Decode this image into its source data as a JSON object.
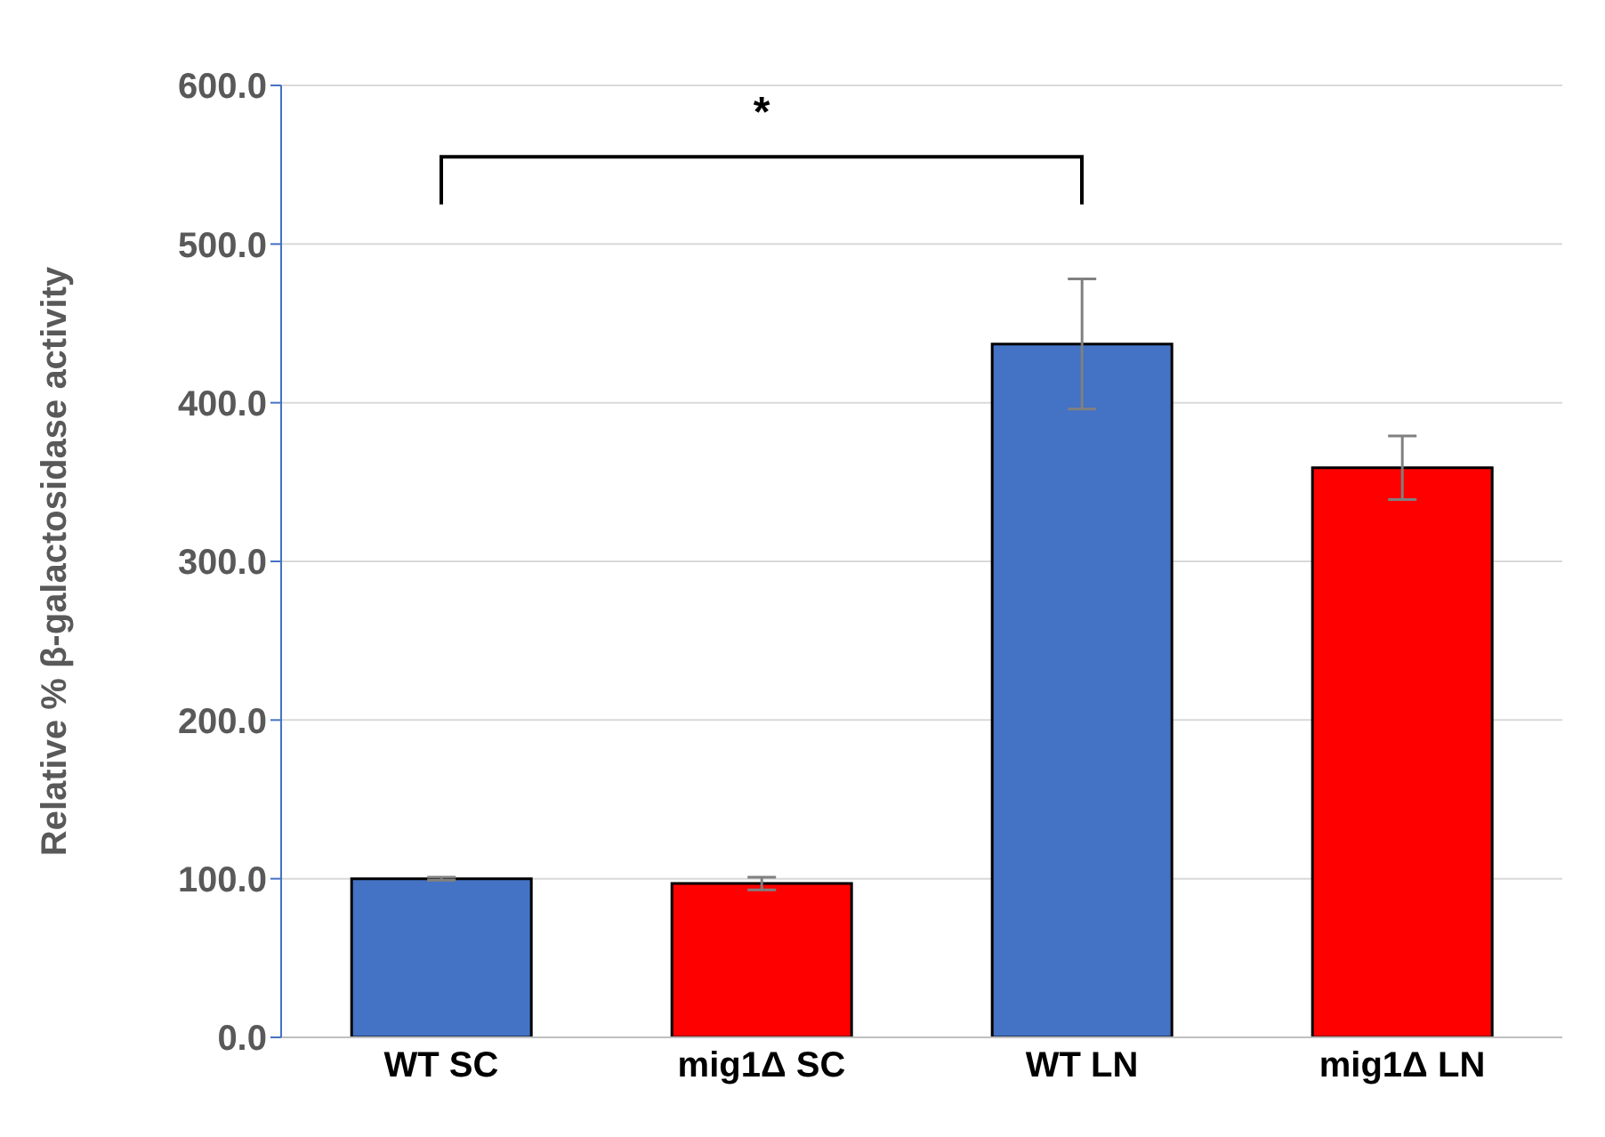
{
  "chart_data": {
    "type": "bar",
    "ylabel": "Relative % β-galactosidase activity",
    "categories": [
      "WT  SC",
      "mig1Δ SC",
      "WT  LN",
      "mig1Δ LN"
    ],
    "values": [
      100,
      97,
      437,
      359
    ],
    "colors": [
      "#4472c4",
      "#ff0000",
      "#4472c4",
      "#ff0000"
    ],
    "errors": [
      1,
      4,
      41,
      20
    ],
    "ylim": [
      0,
      600
    ],
    "yticks": [
      {
        "value": 0,
        "label": "0.0"
      },
      {
        "value": 100,
        "label": "100.0"
      },
      {
        "value": 200,
        "label": "200.0"
      },
      {
        "value": 300,
        "label": "300.0"
      },
      {
        "value": 400,
        "label": "400.0"
      },
      {
        "value": 500,
        "label": "500.0"
      },
      {
        "value": 600,
        "label": "600.0"
      }
    ],
    "grid": "y",
    "legend": false,
    "annotations": [
      "*"
    ]
  }
}
